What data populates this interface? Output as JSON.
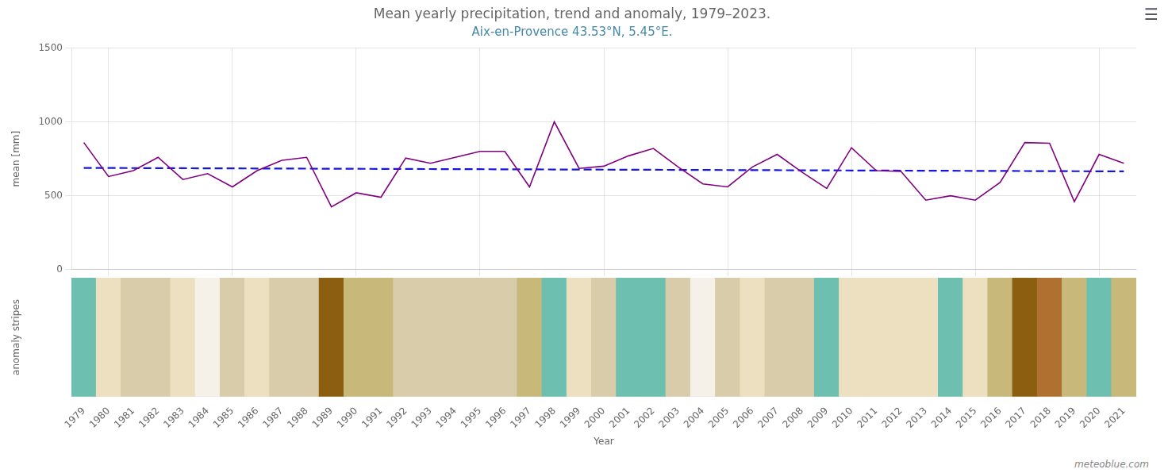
{
  "chart_data": [
    {
      "type": "line",
      "title": "Mean yearly precipitation, trend and anomaly, 1979–2023.",
      "subtitle": "Aix-en-Provence 43.53°N, 5.45°E.",
      "x": [
        1979,
        1980,
        1981,
        1982,
        1983,
        1984,
        1985,
        1986,
        1987,
        1988,
        1989,
        1990,
        1991,
        1992,
        1993,
        1994,
        1995,
        1996,
        1997,
        1998,
        1999,
        2000,
        2001,
        2002,
        2003,
        2004,
        2005,
        2006,
        2007,
        2008,
        2009,
        2010,
        2011,
        2012,
        2013,
        2014,
        2015,
        2016,
        2017,
        2018,
        2019,
        2020,
        2021
      ],
      "series": [
        {
          "color": "#800080",
          "line_style": "solid",
          "values": [
            860,
            630,
            670,
            760,
            610,
            650,
            560,
            670,
            740,
            760,
            425,
            520,
            490,
            755,
            720,
            760,
            800,
            800,
            560,
            1000,
            685,
            700,
            770,
            820,
            695,
            580,
            560,
            695,
            780,
            660,
            550,
            825,
            670,
            665,
            470,
            500,
            470,
            590,
            860,
            855,
            460,
            780,
            720
          ]
        },
        {
          "color": "#1515e0",
          "line_style": "dashed",
          "values": [
            688.49,
            687.93,
            687.37,
            686.82,
            686.26,
            685.7,
            685.14,
            684.58,
            684.02,
            683.46,
            682.9,
            682.34,
            681.78,
            681.22,
            680.66,
            680.1,
            679.54,
            678.98,
            678.42,
            677.86,
            677.3,
            676.74,
            676.18,
            675.63,
            675.07,
            674.51,
            673.95,
            673.39,
            672.83,
            672.27,
            671.71,
            671.15,
            670.59,
            670.03,
            669.47,
            668.91,
            668.35,
            667.79,
            667.23,
            666.67,
            666.11,
            665.55,
            664.99
          ]
        }
      ],
      "xlim": [
        1978.5,
        2021.5
      ],
      "xticks": [
        1980,
        1985,
        1990,
        1995,
        2000,
        2005,
        2010,
        2015,
        2020
      ],
      "ylim": [
        0,
        1500
      ],
      "yticks": [
        0,
        500,
        1000,
        1500
      ],
      "ylabel": "mean [mm]",
      "grid": true,
      "tick_labels": "y",
      "annotations": [
        {
          "text": "meteoblue.com"
        },
        {
          "text": "☰"
        }
      ]
    },
    {
      "type": "bar",
      "x": [
        1979,
        1980,
        1981,
        1982,
        1983,
        1984,
        1985,
        1986,
        1987,
        1988,
        1989,
        1990,
        1991,
        1992,
        1993,
        1994,
        1995,
        1996,
        1997,
        1998,
        1999,
        2000,
        2001,
        2002,
        2003,
        2004,
        2005,
        2006,
        2007,
        2008,
        2009,
        2010,
        2011,
        2012,
        2013,
        2014,
        2015,
        2016,
        2017,
        2018,
        2019,
        2020,
        2021
      ],
      "values": [
        1,
        1,
        1,
        1,
        1,
        1,
        1,
        1,
        1,
        1,
        1,
        1,
        1,
        1,
        1,
        1,
        1,
        1,
        1,
        1,
        1,
        1,
        1,
        1,
        1,
        1,
        1,
        1,
        1,
        1,
        1,
        1,
        1,
        1,
        1,
        1,
        1,
        1,
        1,
        1,
        1,
        1,
        1
      ],
      "colors": [
        "#6dbfb0",
        "#ede0c0",
        "#d8ccaa",
        "#d8ccaa",
        "#ede0c0",
        "#f5f0e8",
        "#d8ccaa",
        "#ede0c0",
        "#d8ccaa",
        "#d8ccaa",
        "#8b5e10",
        "#c8b87a",
        "#c8b87a",
        "#d8ccaa",
        "#d8ccaa",
        "#d8ccaa",
        "#d8ccaa",
        "#d8ccaa",
        "#c8b87a",
        "#6dbfb0",
        "#ede0c0",
        "#d8ccaa",
        "#6dbfb0",
        "#6dbfb0",
        "#d8ccaa",
        "#f5f0e8",
        "#d8ccaa",
        "#ede0c0",
        "#d8ccaa",
        "#d8ccaa",
        "#6dbfb0",
        "#ede0c0",
        "#ede0c0",
        "#ede0c0",
        "#ede0c0",
        "#6dbfb0",
        "#ede0c0",
        "#c8b87a",
        "#8b5e10",
        "#b07030",
        "#c8b87a",
        "#6dbfb0",
        "#c8b87a"
      ],
      "xlim": [
        1978.5,
        2021.5
      ],
      "xticks": [
        1979,
        1980,
        1981,
        1982,
        1983,
        1984,
        1985,
        1986,
        1987,
        1988,
        1989,
        1990,
        1991,
        1992,
        1993,
        1994,
        1995,
        1996,
        1997,
        1998,
        1999,
        2000,
        2001,
        2002,
        2003,
        2004,
        2005,
        2006,
        2007,
        2008,
        2009,
        2010,
        2011,
        2012,
        2013,
        2014,
        2015,
        2016,
        2017,
        2018,
        2019,
        2020,
        2021
      ],
      "ylim": [
        0,
        1
      ],
      "xlabel": "Year",
      "ylabel": "anomaly stripes",
      "grid": false,
      "tick_labels": "x"
    }
  ]
}
